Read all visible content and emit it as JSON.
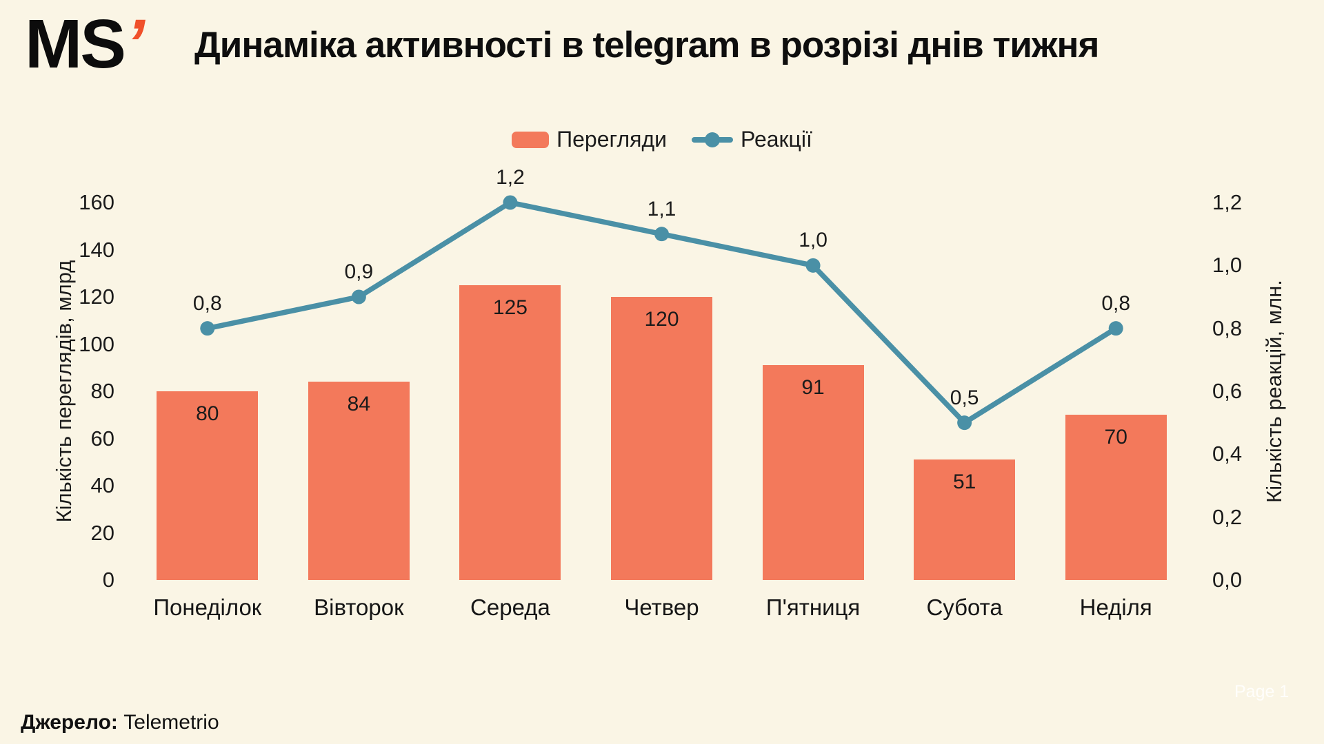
{
  "header": {
    "logo_text": "MS",
    "logo_apostrophe": "’",
    "title": "Динаміка активності в telegram в розрізі днів тижня"
  },
  "legend": {
    "views_label": "Перегляди",
    "reactions_label": "Реакції"
  },
  "footer": {
    "source_label": "Джерело:",
    "source_value": "Telemetrio",
    "page_label": "Page 1"
  },
  "colors": {
    "background": "#FAF5E5",
    "bar": "#F3795B",
    "line": "#4A90A6",
    "accent": "#F0502A",
    "text": "#1A1A1A"
  },
  "chart_data": {
    "type": "bar+line",
    "title": "Динаміка активності в telegram в розрізі днів тижня",
    "categories": [
      "Понеділок",
      "Вівторок",
      "Середа",
      "Четвер",
      "П'ятниця",
      "Субота",
      "Неділя"
    ],
    "series": [
      {
        "name": "Перегляди",
        "type": "bar",
        "axis": "left",
        "values": [
          80,
          84,
          125,
          120,
          91,
          51,
          70
        ],
        "labels": [
          "80",
          "84",
          "125",
          "120",
          "91",
          "51",
          "70"
        ],
        "color": "#F3795B"
      },
      {
        "name": "Реакції",
        "type": "line",
        "axis": "right",
        "values": [
          0.8,
          0.9,
          1.2,
          1.1,
          1.0,
          0.5,
          0.8
        ],
        "labels": [
          "0,8",
          "0,9",
          "1,2",
          "1,1",
          "1,0",
          "0,5",
          "0,8"
        ],
        "color": "#4A90A6"
      }
    ],
    "left_axis": {
      "title": "Кількість переглядів, млрд",
      "min": 0,
      "max": 160,
      "tick_values": [
        0,
        20,
        40,
        60,
        80,
        100,
        120,
        140,
        160
      ],
      "tick_labels": [
        "0",
        "20",
        "40",
        "60",
        "80",
        "100",
        "120",
        "140",
        "160"
      ]
    },
    "right_axis": {
      "title": "Кількість реакцій, млн.",
      "min": 0,
      "max": 1.2,
      "tick_values": [
        0,
        0.2,
        0.4,
        0.6,
        0.8,
        1.0,
        1.2
      ],
      "tick_labels": [
        "0,0",
        "0,2",
        "0,4",
        "0,6",
        "0,8",
        "1,0",
        "1,2"
      ]
    },
    "grid": false,
    "legend_position": "top-center",
    "source": "Telemetrio"
  }
}
